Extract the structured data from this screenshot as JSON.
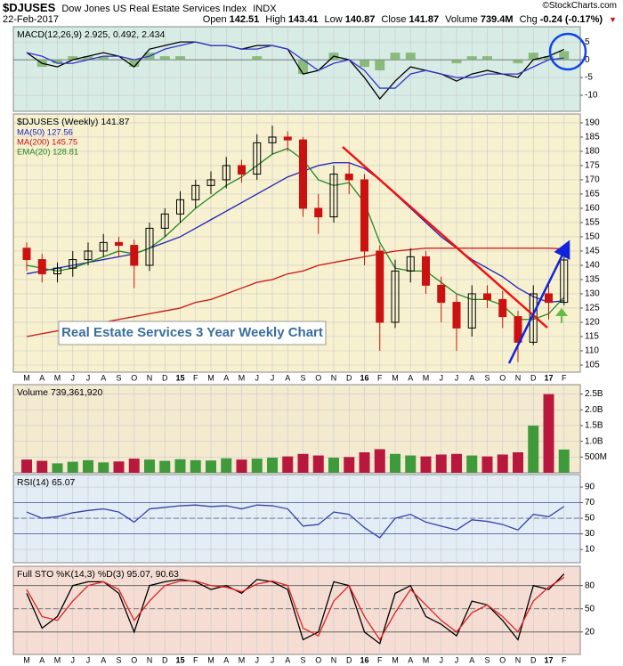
{
  "header": {
    "symbol": "$DJUSES",
    "name": "Dow Jones US Real Estate Services Index",
    "exchange": "INDX",
    "credit": "©StockCharts.com",
    "date": "22-Feb-2017",
    "stats": [
      {
        "label": "Open",
        "value": 142.51
      },
      {
        "label": "High",
        "value": 143.41
      },
      {
        "label": "Low",
        "value": 140.87
      },
      {
        "label": "Close",
        "value": 141.87
      },
      {
        "label": "Volume",
        "value": "739.4M"
      },
      {
        "label": "Chg",
        "value": "-0.24 (-0.17%)"
      }
    ]
  },
  "annotation": "Real Estate Services 3 Year Weekly Chart",
  "chart_data": [
    {
      "type": "line",
      "title": "MACD(12,26,9) 2.925, 0.492, 2.434",
      "background": "#d8ece6",
      "ylim": [
        -14.5,
        9.3
      ],
      "yticks": [
        5,
        0,
        -5,
        -10
      ],
      "hlines": [
        0
      ],
      "series": [
        {
          "name": "MACD",
          "color": "#000000",
          "values": [
            2,
            -1,
            -2,
            0,
            1,
            2,
            1,
            -2,
            3,
            4,
            5,
            5,
            4,
            4,
            3,
            4,
            4,
            3,
            -4,
            -3,
            1,
            0,
            -5,
            -11,
            -6,
            -2,
            -3,
            -4,
            -6,
            -4,
            -3,
            -4,
            -5,
            0,
            1,
            2.925
          ]
        },
        {
          "name": "Signal",
          "color": "#3333cc",
          "values": [
            2,
            1,
            -1,
            -1,
            0,
            1,
            1,
            0,
            1,
            3,
            4,
            5,
            4,
            4,
            3,
            3,
            4,
            3,
            0,
            -3,
            -1,
            0,
            -3,
            -8,
            -8,
            -4,
            -3,
            -4,
            -5,
            -5,
            -4,
            -4,
            -4,
            -2,
            0,
            0.492
          ]
        },
        {
          "name": "Histogram",
          "style": "histogram",
          "color": "#7cb36a",
          "values": [
            0,
            -2,
            -1,
            1,
            1,
            1,
            0,
            -2,
            2,
            1,
            1,
            0,
            0,
            0,
            0,
            1,
            0,
            0,
            -4,
            0,
            2,
            0,
            -2,
            -3,
            2,
            2,
            0,
            0,
            -1,
            1,
            1,
            0,
            -1,
            2,
            1,
            2.434
          ]
        }
      ]
    },
    {
      "type": "candlestick",
      "title": "$DJUSES (Weekly) 141.87",
      "background": "#f7f1cf",
      "ylim": [
        102.5,
        193.1
      ],
      "yticks": [
        105,
        110,
        115,
        120,
        125,
        130,
        135,
        140,
        145,
        150,
        155,
        160,
        165,
        170,
        175,
        180,
        185,
        190
      ],
      "categories": [
        "M",
        "A",
        "M",
        "J",
        "J",
        "A",
        "S",
        "O",
        "N",
        "D",
        "15",
        "F",
        "M",
        "A",
        "M",
        "J",
        "J",
        "A",
        "S",
        "O",
        "N",
        "D",
        "16",
        "F",
        "M",
        "A",
        "M",
        "J",
        "J",
        "A",
        "S",
        "O",
        "N",
        "D",
        "17",
        "F"
      ],
      "up_color": "#000000",
      "down_color": "#cc1111",
      "open": [
        146,
        142,
        137,
        139,
        142,
        145,
        148,
        147,
        140,
        153,
        158,
        163,
        168,
        170,
        175,
        172,
        183,
        185,
        184,
        160,
        157,
        172,
        170,
        145,
        120,
        138,
        143,
        133,
        127,
        118,
        130,
        128,
        122,
        113,
        130,
        127
      ],
      "high": [
        148,
        144,
        141,
        145,
        148,
        151,
        150,
        149,
        155,
        160,
        166,
        170,
        173,
        178,
        177,
        186,
        189,
        187,
        185,
        165,
        175,
        176,
        172,
        147,
        142,
        146,
        145,
        136,
        130,
        133,
        133,
        131,
        124,
        133,
        134,
        144
      ],
      "low": [
        138,
        134,
        134,
        136,
        140,
        143,
        143,
        132,
        138,
        150,
        155,
        160,
        165,
        167,
        169,
        170,
        179,
        180,
        157,
        151,
        155,
        165,
        140,
        110,
        118,
        134,
        130,
        120,
        110,
        115,
        125,
        118,
        106,
        112,
        121,
        126
      ],
      "close": [
        142,
        137,
        139,
        142,
        145,
        148,
        147,
        140,
        153,
        158,
        163,
        168,
        170,
        175,
        172,
        183,
        185,
        184,
        160,
        157,
        172,
        170,
        145,
        120,
        138,
        143,
        133,
        127,
        118,
        130,
        128,
        122,
        113,
        130,
        127,
        141.87
      ],
      "series": [
        {
          "name": "MA(50) 127.56",
          "color": "#2222bb",
          "values": [
            137,
            138,
            139,
            140,
            141,
            142,
            143,
            144,
            146,
            148,
            150,
            153,
            156,
            159,
            162,
            165,
            168,
            171,
            173,
            175,
            176,
            176,
            174,
            170,
            165,
            160,
            155,
            150,
            146,
            142,
            139,
            136,
            132,
            129,
            127,
            127.56
          ]
        },
        {
          "name": "MA(200) 145.75",
          "color": "#cc1111",
          "values": [
            115,
            116,
            117,
            118,
            119,
            120,
            121,
            122,
            123,
            124,
            125,
            127,
            128,
            130,
            132,
            134,
            135,
            137,
            138,
            140,
            141,
            142,
            143,
            144,
            145,
            145.5,
            146,
            146,
            146,
            146,
            146,
            146,
            146,
            146,
            146,
            145.75
          ]
        },
        {
          "name": "EMA(20) 128.81",
          "color": "#228822",
          "values": [
            140,
            139,
            138,
            139,
            141,
            143,
            145,
            144,
            146,
            150,
            155,
            160,
            164,
            168,
            171,
            175,
            179,
            181,
            177,
            170,
            168,
            169,
            162,
            148,
            139,
            138,
            138,
            134,
            130,
            128,
            128,
            126,
            121,
            121,
            123,
            128.81
          ]
        }
      ]
    },
    {
      "type": "bar",
      "title": "Volume 739,361,920",
      "background": "#f3ead0",
      "ylim": [
        0,
        2800000000
      ],
      "up_color": "#3f9a3a",
      "down_color": "#b8173e",
      "yticks": [
        {
          "value": 500000000,
          "label": "500M"
        },
        {
          "value": 1000000000,
          "label": "1.0B"
        },
        {
          "value": 1500000000,
          "label": "1.5B"
        },
        {
          "value": 2000000000,
          "label": "2.0B"
        },
        {
          "value": 2500000000,
          "label": "2.5B"
        }
      ],
      "values": [
        420000000,
        380000000,
        300000000,
        350000000,
        400000000,
        330000000,
        360000000,
        450000000,
        420000000,
        380000000,
        430000000,
        400000000,
        390000000,
        460000000,
        420000000,
        450000000,
        480000000,
        520000000,
        600000000,
        550000000,
        480000000,
        500000000,
        650000000,
        750000000,
        600000000,
        550000000,
        520000000,
        580000000,
        600000000,
        550000000,
        520000000,
        580000000,
        650000000,
        1500000000,
        2500000000,
        739361920
      ]
    },
    {
      "type": "line",
      "title": "RSI(14) 65.07",
      "background": "#e2edf5",
      "ylim": [
        -7,
        106
      ],
      "yticks": [
        10,
        30,
        50,
        70,
        90
      ],
      "hlines": [
        30,
        50,
        70
      ],
      "series": [
        {
          "name": "RSI",
          "color": "#3344aa",
          "values": [
            58,
            50,
            52,
            57,
            60,
            62,
            58,
            45,
            62,
            64,
            66,
            67,
            65,
            66,
            62,
            67,
            66,
            62,
            40,
            42,
            58,
            55,
            38,
            25,
            50,
            55,
            45,
            40,
            35,
            48,
            46,
            42,
            35,
            55,
            52,
            65.07
          ]
        }
      ]
    },
    {
      "type": "line",
      "title": "Full STO %K(14,3) %D(3) 95.07, 90.63",
      "background": "#f5ddd4",
      "ylim": [
        -9,
        105
      ],
      "yticks": [
        20,
        50,
        80
      ],
      "hlines": [
        20,
        50,
        80
      ],
      "categories": [
        "M",
        "A",
        "M",
        "J",
        "J",
        "A",
        "S",
        "O",
        "N",
        "D",
        "15",
        "F",
        "M",
        "A",
        "M",
        "J",
        "J",
        "A",
        "S",
        "O",
        "N",
        "D",
        "16",
        "F",
        "M",
        "A",
        "M",
        "J",
        "J",
        "A",
        "S",
        "O",
        "N",
        "D",
        "17",
        "F"
      ],
      "series": [
        {
          "name": "%K",
          "color": "#000000",
          "values": [
            70,
            25,
            40,
            80,
            85,
            85,
            70,
            20,
            80,
            85,
            88,
            85,
            75,
            80,
            70,
            88,
            85,
            75,
            10,
            20,
            85,
            80,
            20,
            5,
            70,
            80,
            40,
            30,
            15,
            60,
            55,
            35,
            10,
            80,
            75,
            95.07
          ]
        },
        {
          "name": "%D",
          "color": "#dd2222",
          "values": [
            75,
            40,
            35,
            60,
            80,
            85,
            75,
            35,
            60,
            80,
            86,
            86,
            80,
            78,
            72,
            82,
            86,
            80,
            25,
            15,
            60,
            80,
            40,
            10,
            45,
            75,
            55,
            35,
            20,
            45,
            55,
            40,
            20,
            60,
            78,
            90.63
          ]
        }
      ]
    }
  ]
}
